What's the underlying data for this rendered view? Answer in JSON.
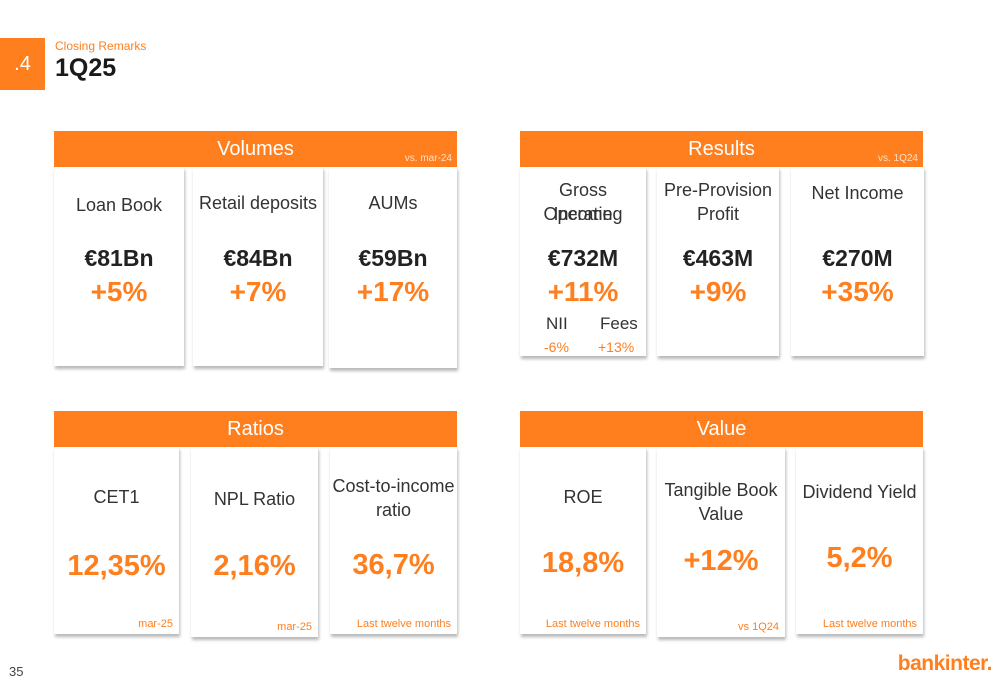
{
  "section": {
    "number": ".4",
    "subtitle": "Closing Remarks",
    "title": "1Q25"
  },
  "panels": {
    "volumes": {
      "title": "Volumes",
      "note": "vs. mar-24",
      "cards": [
        {
          "label": "Loan Book",
          "amount": "€81Bn",
          "growth": "+5%"
        },
        {
          "label": "Retail deposits",
          "amount": "€84Bn",
          "growth": "+7%"
        },
        {
          "label": "AUMs",
          "amount": "€59Bn",
          "growth": "+17%"
        }
      ]
    },
    "results": {
      "title": "Results",
      "note": "vs. 1Q24",
      "cards": [
        {
          "label_line1": "Gross Operating",
          "label_line2": "Income",
          "amount": "€732M",
          "growth": "+11%",
          "sub": [
            {
              "label": "NII",
              "value": "-6%"
            },
            {
              "label": "Fees",
              "value": "+13%"
            }
          ]
        },
        {
          "label_line1": "Pre-Provision",
          "label_line2": "Profit",
          "amount": "€463M",
          "growth": "+9%"
        },
        {
          "label_line1": "Net Income",
          "label_line2": "",
          "amount": "€270M",
          "growth": "+35%"
        }
      ]
    },
    "ratios": {
      "title": "Ratios",
      "cards": [
        {
          "label_line1": "CET1",
          "label_line2": "",
          "value": "12,35%",
          "footnote": "mar-25"
        },
        {
          "label_line1": "NPL Ratio",
          "label_line2": "",
          "value": "2,16%",
          "footnote": "mar-25"
        },
        {
          "label_line1": "Cost-to-income",
          "label_line2": "ratio",
          "value": "36,7%",
          "footnote": "Last twelve months"
        }
      ]
    },
    "value": {
      "title": "Value",
      "cards": [
        {
          "label_line1": "ROE",
          "label_line2": "",
          "value": "18,8%",
          "footnote": "Last twelve months"
        },
        {
          "label_line1": "Tangible Book",
          "label_line2": "Value",
          "value": "+12%",
          "footnote": "vs 1Q24"
        },
        {
          "label_line1": "Dividend Yield",
          "label_line2": "",
          "value": "5,2%",
          "footnote": "Last twelve months"
        }
      ]
    }
  },
  "footer": {
    "page_number": "35",
    "logo_text": "bankinter."
  },
  "colors": {
    "accent": "#FF7F1E",
    "text": "#222222"
  }
}
